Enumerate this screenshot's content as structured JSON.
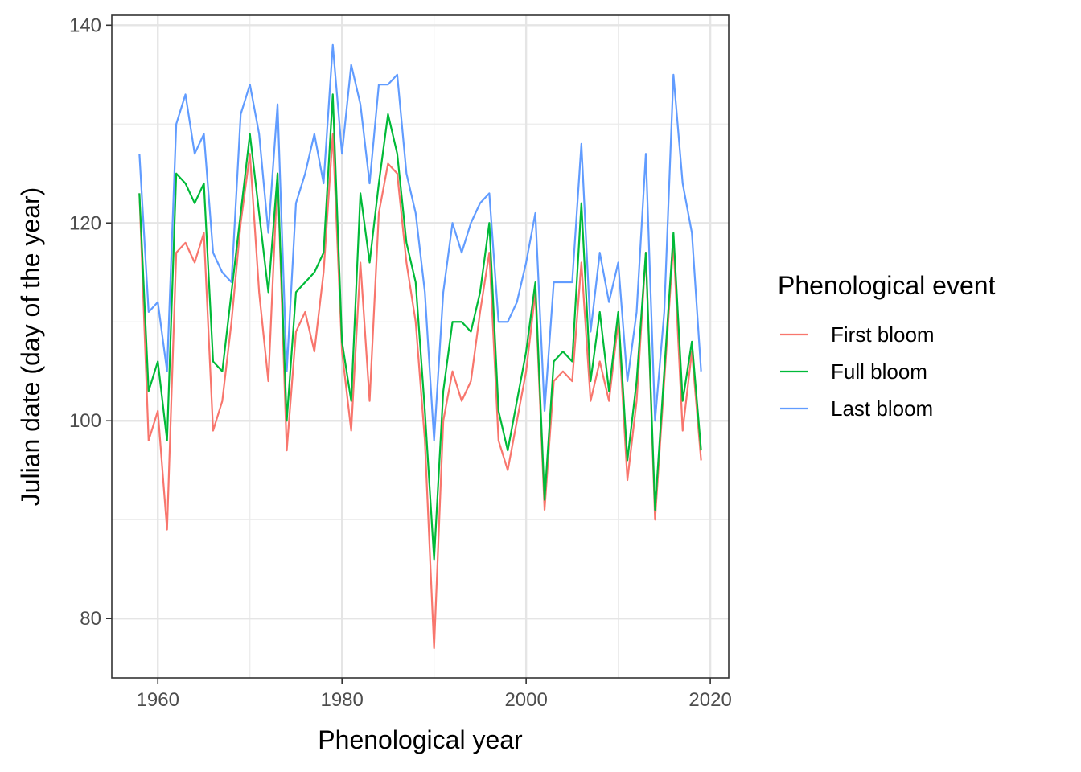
{
  "chart_data": {
    "type": "line",
    "xlabel": "Phenological year",
    "ylabel": "Julian date (day of the year)",
    "xlim": [
      1955,
      2022
    ],
    "ylim": [
      74,
      141
    ],
    "x_ticks": [
      1960,
      1980,
      2000,
      2020
    ],
    "y_ticks": [
      80,
      100,
      120,
      140
    ],
    "x_tick_labels": [
      "1960",
      "1980",
      "2000",
      "2020"
    ],
    "y_tick_labels": [
      "80",
      "100",
      "120",
      "140"
    ],
    "grid": true,
    "theme": "bw",
    "legend": {
      "title": "Phenological event",
      "placement": "right"
    },
    "x": [
      1958,
      1959,
      1960,
      1961,
      1962,
      1963,
      1964,
      1965,
      1966,
      1967,
      1968,
      1969,
      1970,
      1971,
      1972,
      1973,
      1974,
      1975,
      1976,
      1977,
      1978,
      1979,
      1980,
      1981,
      1982,
      1983,
      1984,
      1985,
      1986,
      1987,
      1988,
      1989,
      1990,
      1991,
      1992,
      1993,
      1994,
      1995,
      1996,
      1997,
      1998,
      1999,
      2000,
      2001,
      2002,
      2003,
      2004,
      2005,
      2006,
      2007,
      2008,
      2009,
      2010,
      2011,
      2012,
      2013,
      2014,
      2015,
      2016,
      2017,
      2018,
      2019
    ],
    "series": [
      {
        "name": "First bloom",
        "color": "#F8766D",
        "values": [
          123,
          98,
          101,
          89,
          117,
          118,
          116,
          119,
          99,
          102,
          110,
          120,
          127,
          113,
          104,
          125,
          97,
          109,
          111,
          107,
          115,
          129,
          107,
          99,
          116,
          102,
          121,
          126,
          125,
          116,
          110,
          98,
          77,
          100,
          105,
          102,
          104,
          111,
          117,
          98,
          95,
          100,
          105,
          113,
          91,
          104,
          105,
          104,
          116,
          102,
          106,
          102,
          110,
          94,
          102,
          117,
          90,
          104,
          118,
          99,
          107,
          96
        ]
      },
      {
        "name": "Full bloom",
        "color": "#00BA38",
        "values": [
          123,
          103,
          106,
          98,
          125,
          124,
          122,
          124,
          106,
          105,
          113,
          121,
          129,
          121,
          113,
          125,
          100,
          113,
          114,
          115,
          117,
          133,
          108,
          102,
          123,
          116,
          124,
          131,
          127,
          118,
          114,
          101,
          86,
          103,
          110,
          110,
          109,
          113,
          120,
          101,
          97,
          102,
          107,
          114,
          92,
          106,
          107,
          106,
          122,
          104,
          111,
          103,
          111,
          96,
          104,
          117,
          91,
          105,
          119,
          102,
          108,
          97
        ]
      },
      {
        "name": "Last bloom",
        "color": "#619CFF",
        "values": [
          127,
          111,
          112,
          105,
          130,
          133,
          127,
          129,
          117,
          115,
          114,
          131,
          134,
          129,
          119,
          132,
          105,
          122,
          125,
          129,
          124,
          138,
          127,
          136,
          132,
          124,
          134,
          134,
          135,
          125,
          121,
          113,
          98,
          113,
          120,
          117,
          120,
          122,
          123,
          110,
          110,
          112,
          116,
          121,
          101,
          114,
          114,
          114,
          128,
          109,
          117,
          112,
          116,
          104,
          111,
          127,
          100,
          111,
          135,
          124,
          119,
          105
        ]
      }
    ]
  }
}
